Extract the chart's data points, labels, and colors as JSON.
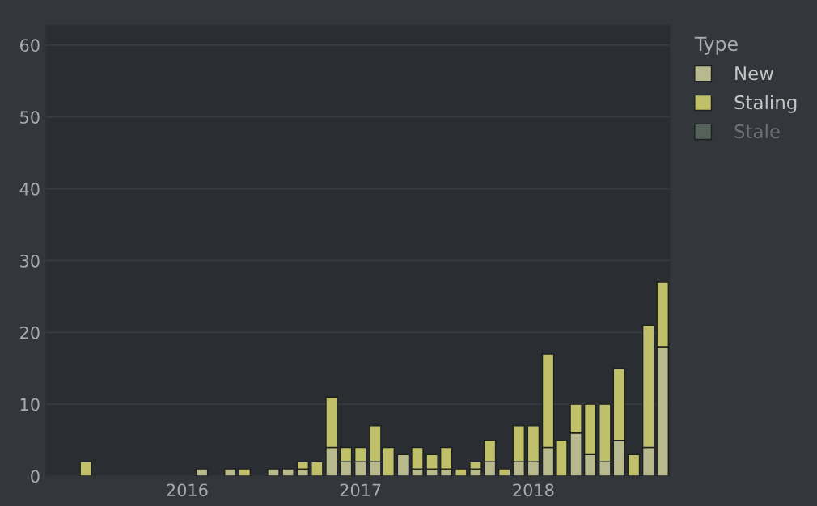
{
  "chart_data": {
    "type": "bar",
    "stacked": true,
    "x": [
      "2015-04",
      "2015-05",
      "2015-06",
      "2015-07",
      "2015-08",
      "2015-09",
      "2015-10",
      "2015-11",
      "2015-12",
      "2016-01",
      "2016-02",
      "2016-03",
      "2016-04",
      "2016-05",
      "2016-06",
      "2016-07",
      "2016-08",
      "2016-09",
      "2016-10",
      "2016-11",
      "2016-12",
      "2017-01",
      "2017-02",
      "2017-03",
      "2017-04",
      "2017-05",
      "2017-06",
      "2017-07",
      "2017-08",
      "2017-09",
      "2017-10",
      "2017-11",
      "2017-12",
      "2018-01",
      "2018-02",
      "2018-03",
      "2018-04",
      "2018-05",
      "2018-06",
      "2018-07",
      "2018-08",
      "2018-09",
      "2018-10"
    ],
    "series": [
      {
        "name": "New",
        "color": "#b8b98c",
        "values": [
          0,
          0,
          0,
          0,
          0,
          0,
          0,
          0,
          0,
          0,
          1,
          0,
          1,
          0,
          0,
          1,
          1,
          1,
          0,
          4,
          2,
          2,
          2,
          0,
          3,
          1,
          1,
          1,
          0,
          1,
          2,
          0,
          2,
          2,
          4,
          0,
          6,
          3,
          2,
          5,
          0,
          4,
          18
        ]
      },
      {
        "name": "Staling",
        "color": "#c0bf6a",
        "values": [
          0,
          0,
          2,
          0,
          0,
          0,
          0,
          0,
          0,
          0,
          0,
          0,
          0,
          1,
          0,
          0,
          0,
          1,
          2,
          7,
          2,
          2,
          5,
          4,
          0,
          3,
          2,
          3,
          1,
          1,
          3,
          1,
          5,
          5,
          13,
          5,
          4,
          7,
          8,
          10,
          3,
          17,
          9
        ]
      },
      {
        "name": "Stale",
        "color": "#55625a",
        "values": [
          null,
          null,
          null,
          null,
          null,
          null,
          null,
          null,
          null,
          null,
          null,
          null,
          null,
          null,
          null,
          null,
          null,
          null,
          null,
          null,
          null,
          null,
          null,
          null,
          null,
          null,
          null,
          null,
          null,
          null,
          null,
          null,
          null,
          null,
          null,
          null,
          null,
          null,
          null,
          null,
          null,
          null,
          null
        ]
      }
    ],
    "legend_title": "Type",
    "legend": "right",
    "grid": "y",
    "xlim": [
      "2015-03-09",
      "2018-10-16"
    ],
    "xticks": [
      {
        "value": "2016-01-01",
        "label": "2016"
      },
      {
        "value": "2017-01-01",
        "label": "2017"
      },
      {
        "value": "2018-01-01",
        "label": "2018"
      }
    ],
    "ylim": [
      0,
      62.8
    ],
    "yticks": [
      0,
      10,
      20,
      30,
      40,
      50,
      60
    ]
  }
}
